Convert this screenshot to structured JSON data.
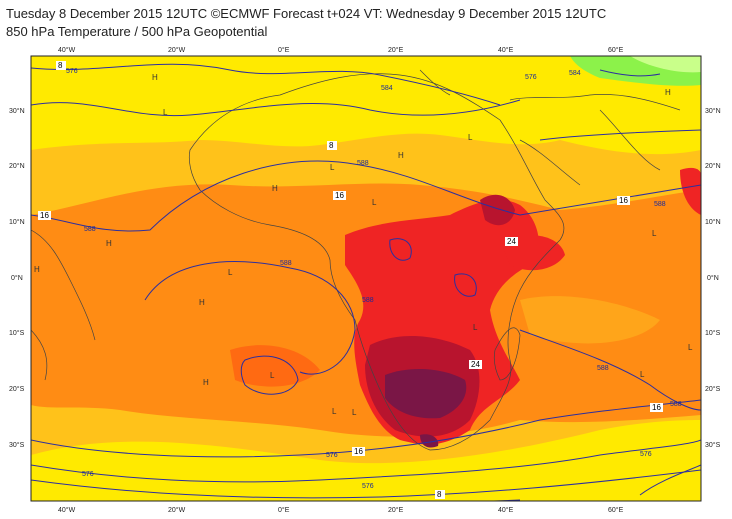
{
  "header": {
    "line1": "Tuesday 8 December 2015 12UTC ©ECMWF Forecast t+024 VT: Wednesday 9 December 2015 12UTC",
    "line2": "850 hPa Temperature / 500 hPa Geopotential"
  },
  "axes": {
    "top_lon": [
      "40°W",
      "20°W",
      "0°E",
      "20°E",
      "40°E",
      "60°E"
    ],
    "bottom_lon": [
      "40°W",
      "20°W",
      "0°E",
      "20°E",
      "40°E",
      "60°E"
    ],
    "left_lat": [
      "30°N",
      "20°N",
      "10°N",
      "0°N",
      "10°S",
      "20°S",
      "30°S"
    ],
    "right_lat": [
      "30°N",
      "20°N",
      "10°N",
      "0°N",
      "10°S",
      "20°S",
      "30°S"
    ]
  },
  "contour_labels": [
    "576",
    "576",
    "584",
    "584",
    "588",
    "588",
    "588",
    "588",
    "588",
    "588",
    "588",
    "576",
    "576",
    "576",
    "576"
  ],
  "temperature_labels": [
    "8",
    "8",
    "16",
    "16",
    "16",
    "16",
    "16",
    "24",
    "24",
    "8"
  ],
  "pressure_centres": [
    "H",
    "L",
    "L",
    "H",
    "L",
    "H",
    "H",
    "L",
    "L",
    "H",
    "L",
    "L",
    "H",
    "L",
    "H",
    "L",
    "L",
    "L",
    "H",
    "L"
  ],
  "colors": {
    "yellow": "#ffea00",
    "light_orange": "#ffc21a",
    "orange": "#ff8c14",
    "dark_orange": "#ff6a12",
    "red": "#ef2424",
    "dark_red": "#b8142e",
    "purple": "#7a1646",
    "geopotential": "#2d2f9f",
    "green": "#8cf24a"
  }
}
